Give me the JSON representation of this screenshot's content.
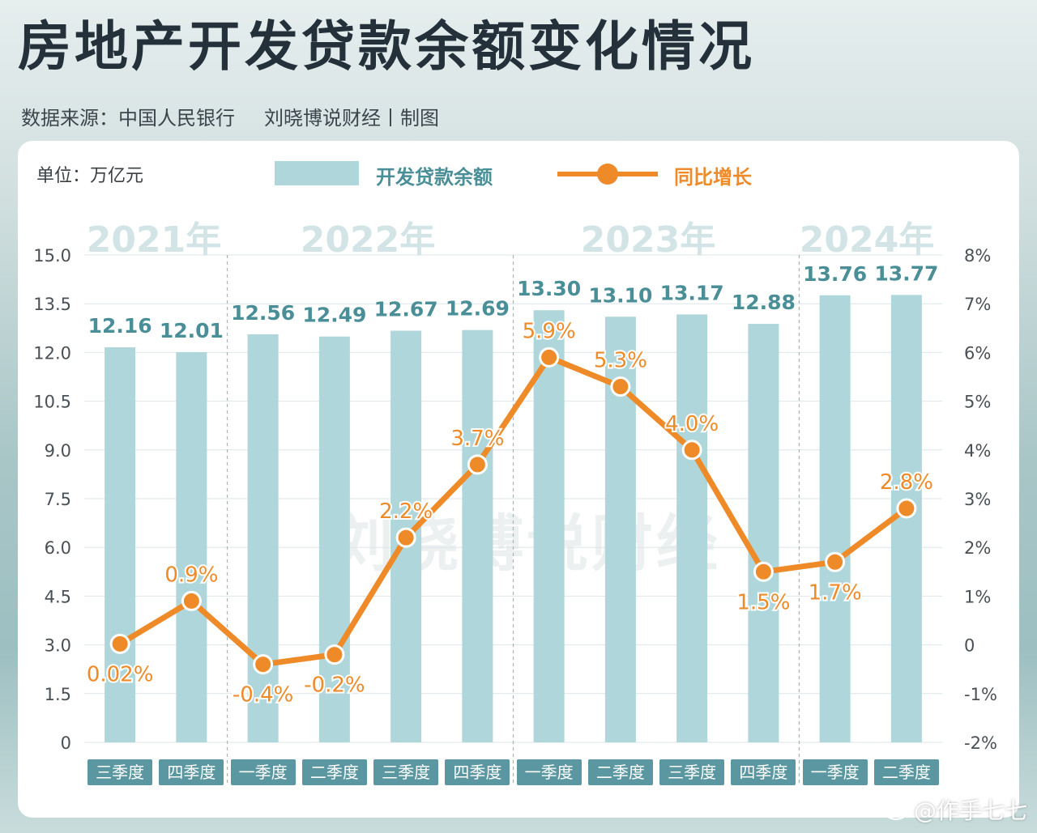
{
  "title": "房地产开发贷款余额变化情况",
  "subtitle": {
    "source": "数据来源：中国人民银行",
    "credit": "刘晓博说财经丨制图"
  },
  "unit_label": "单位：万亿元",
  "watermark": "刘晓博说财经",
  "weibo_handle": "@作手七七",
  "colors": {
    "bar": "#afd6da",
    "bar_label": "#4a8f98",
    "line": "#ee8a28",
    "line_point_fill": "#ee8a28",
    "category_box": "#5a97a1",
    "year_label": "#d2e4e6"
  },
  "chart_data": {
    "type": "bar",
    "categories": [
      "三季度",
      "四季度",
      "一季度",
      "二季度",
      "三季度",
      "四季度",
      "一季度",
      "二季度",
      "三季度",
      "四季度",
      "一季度",
      "二季度"
    ],
    "groups": [
      {
        "label": "2021年",
        "count": 2
      },
      {
        "label": "2022年",
        "count": 4
      },
      {
        "label": "2023年",
        "count": 4
      },
      {
        "label": "2024年",
        "count": 2
      }
    ],
    "series": [
      {
        "name": "开发贷款余额",
        "type": "bar",
        "axis": "left",
        "values": [
          12.16,
          12.01,
          12.56,
          12.49,
          12.67,
          12.69,
          13.3,
          13.1,
          13.17,
          12.88,
          13.76,
          13.77
        ],
        "labels": [
          "12.16",
          "12.01",
          "12.56",
          "12.49",
          "12.67",
          "12.69",
          "13.30",
          "13.10",
          "13.17",
          "12.88",
          "13.76",
          "13.77"
        ]
      },
      {
        "name": "同比增长",
        "type": "line",
        "axis": "right",
        "values": [
          0.02,
          0.9,
          -0.4,
          -0.2,
          2.2,
          3.7,
          5.9,
          5.3,
          4.0,
          1.5,
          1.7,
          2.8
        ],
        "labels": [
          "0.02%",
          "0.9%",
          "-0.4%",
          "-0.2%",
          "2.2%",
          "3.7%",
          "5.9%",
          "5.3%",
          "4.0%",
          "1.5%",
          "1.7%",
          "2.8%"
        ]
      }
    ],
    "y_left": {
      "min": 0,
      "max": 15,
      "step": 1.5,
      "ticks": [
        "0",
        "1.5",
        "3.0",
        "4.5",
        "6.0",
        "7.5",
        "9.0",
        "10.5",
        "12.0",
        "13.5",
        "15.0"
      ]
    },
    "y_right": {
      "min": -2,
      "max": 8,
      "step": 1,
      "ticks": [
        "-2%",
        "-1%",
        "0",
        "1%",
        "2%",
        "3%",
        "4%",
        "5%",
        "6%",
        "7%",
        "8%"
      ]
    },
    "grid": true,
    "legend_position": "top"
  }
}
